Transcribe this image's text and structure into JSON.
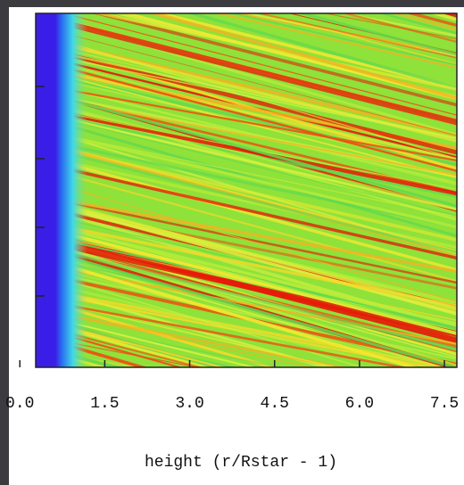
{
  "chart_data": {
    "type": "heatmap",
    "xlabel": "height (r/Rstar - 1)",
    "xlim": [
      0.28,
      7.72
    ],
    "xticks": [
      {
        "value": 0,
        "label": "0.0"
      },
      {
        "value": 1.5,
        "label": "1.5"
      },
      {
        "value": 3,
        "label": "3.0"
      },
      {
        "value": 4.5,
        "label": "4.5"
      },
      {
        "value": 6,
        "label": "6.0"
      },
      {
        "value": 7.5,
        "label": "7.5"
      }
    ]
  }
}
